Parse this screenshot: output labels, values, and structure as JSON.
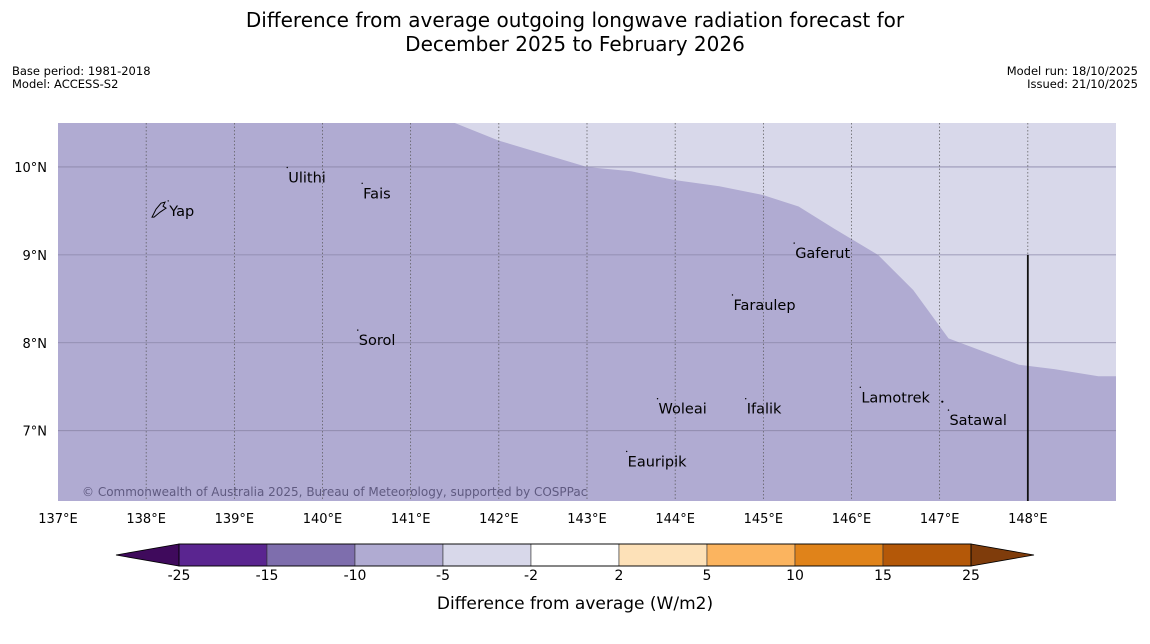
{
  "title": {
    "line1": "Difference from average outgoing longwave radiation forecast for",
    "line2": "December 2025 to February 2026"
  },
  "meta_left": {
    "base_period": "Base period: 1981-2018",
    "model": "Model: ACCESS-S2"
  },
  "meta_right": {
    "model_run": "Model run: 18/10/2025",
    "issued": "Issued: 21/10/2025"
  },
  "map": {
    "lon_range": [
      137,
      149
    ],
    "lat_range": [
      6.2,
      10.5
    ],
    "lon_ticks": [
      "137°E",
      "138°E",
      "139°E",
      "140°E",
      "141°E",
      "142°E",
      "143°E",
      "144°E",
      "145°E",
      "146°E",
      "147°E",
      "148°E"
    ],
    "lat_ticks": [
      "10°N",
      "9°N",
      "8°N",
      "7°N"
    ],
    "lat_tick_values": [
      10,
      9,
      8,
      7
    ],
    "boundary_lonlat": [
      [
        141.5,
        10.5
      ],
      [
        142,
        10.3
      ],
      [
        143,
        10.0
      ],
      [
        143.5,
        9.95
      ],
      [
        144,
        9.85
      ],
      [
        144.5,
        9.78
      ],
      [
        145,
        9.68
      ],
      [
        145.4,
        9.55
      ],
      [
        145.8,
        9.3
      ],
      [
        146.3,
        9.0
      ],
      [
        146.7,
        8.6
      ],
      [
        147.1,
        8.05
      ],
      [
        147.5,
        7.9
      ],
      [
        147.9,
        7.75
      ],
      [
        148.3,
        7.7
      ],
      [
        148.8,
        7.62
      ],
      [
        149,
        7.62
      ]
    ],
    "places": [
      {
        "name": "Yap",
        "lon": 138.25,
        "lat": 9.5
      },
      {
        "name": "Ulithi",
        "lon": 139.6,
        "lat": 9.88
      },
      {
        "name": "Fais",
        "lon": 140.45,
        "lat": 9.7
      },
      {
        "name": "Gaferut",
        "lon": 145.35,
        "lat": 9.02
      },
      {
        "name": "Faraulep",
        "lon": 144.65,
        "lat": 8.43
      },
      {
        "name": "Sorol",
        "lon": 140.4,
        "lat": 8.03
      },
      {
        "name": "Woleai",
        "lon": 143.8,
        "lat": 7.25
      },
      {
        "name": "Ifalik",
        "lon": 144.8,
        "lat": 7.25
      },
      {
        "name": "Lamotrek",
        "lon": 146.1,
        "lat": 7.38
      },
      {
        "name": "Satawal",
        "lon": 147.1,
        "lat": 7.12
      },
      {
        "name": "Eauripik",
        "lon": 143.45,
        "lat": 6.65
      }
    ],
    "copyright": "© Commonwealth of Australia 2025, Bureau of Meteorology, supported by COSPPac",
    "fill_below": "#b0abd2",
    "fill_above": "#d8d8ea"
  },
  "colorbar": {
    "title": "Difference from average (W/m2)",
    "labels": [
      "-25",
      "-15",
      "-10",
      "-5",
      "-2",
      "2",
      "5",
      "10",
      "15",
      "25"
    ],
    "colors": [
      "#5a2590",
      "#7e6ead",
      "#b0abd2",
      "#d8d8ea",
      "#ffffff",
      "#fde1b8",
      "#fbb45f",
      "#e0831a",
      "#b45808"
    ],
    "extend_low_color": "#3f0a5c",
    "extend_high_color": "#7f3c0b"
  }
}
